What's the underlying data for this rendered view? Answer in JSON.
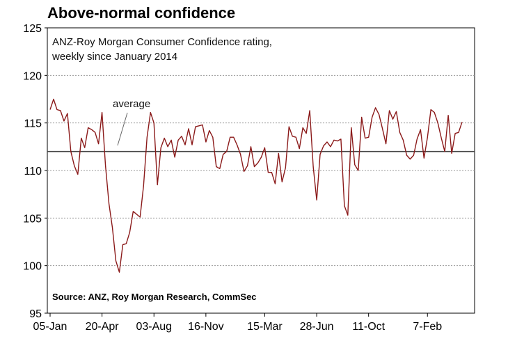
{
  "title": "Above-normal confidence",
  "chart_data": {
    "type": "line",
    "subtitle_line1": "ANZ-Roy Morgan Consumer Confidence rating,",
    "subtitle_line2": "weekly since January 2014",
    "source": "Source: ANZ, Roy Morgan Research, CommSec",
    "average_label": "average",
    "average_value": 112,
    "ylim": [
      95,
      125
    ],
    "yticks": [
      95,
      100,
      105,
      110,
      115,
      120,
      125
    ],
    "xticks": [
      "05-Jan",
      "20-Apr",
      "03-Aug",
      "16-Nov",
      "15-Mar",
      "28-Jun",
      "11-Oct",
      "7-Feb"
    ],
    "xtick_index": [
      0,
      15,
      30,
      45,
      62,
      77,
      92,
      109
    ],
    "grid": true,
    "series": [
      {
        "color": "#8b1a1a",
        "values": [
          116.4,
          117.5,
          116.4,
          116.3,
          115.2,
          116.0,
          112.0,
          110.5,
          109.6,
          113.4,
          112.4,
          114.5,
          114.3,
          114.0,
          112.8,
          116.1,
          110.5,
          106.5,
          104.0,
          100.5,
          99.3,
          102.2,
          102.3,
          103.5,
          105.7,
          105.4,
          105.1,
          108.4,
          113.5,
          116.1,
          115.0,
          108.5,
          112.4,
          113.4,
          112.5,
          113.2,
          111.4,
          113.2,
          113.6,
          112.7,
          114.4,
          112.7,
          114.6,
          114.7,
          114.8,
          113.0,
          114.2,
          113.5,
          110.4,
          110.2,
          111.7,
          112.0,
          113.5,
          113.5,
          112.7,
          111.7,
          109.9,
          110.5,
          112.5,
          110.4,
          110.8,
          111.4,
          112.4,
          109.8,
          109.8,
          108.6,
          111.8,
          108.8,
          110.3,
          114.6,
          113.6,
          113.5,
          112.3,
          114.5,
          113.9,
          116.3,
          110.4,
          106.9,
          111.7,
          112.6,
          113.0,
          112.5,
          113.2,
          113.1,
          113.3,
          106.3,
          105.3,
          114.5,
          110.6,
          110.0,
          115.6,
          113.4,
          113.5,
          115.6,
          116.6,
          115.9,
          114.4,
          112.8,
          116.3,
          115.4,
          116.2,
          114.0,
          113.2,
          111.6,
          111.2,
          111.6,
          113.3,
          114.3,
          111.3,
          113.5,
          116.4,
          116.1,
          115.0,
          113.4,
          112.0,
          115.8,
          111.8,
          113.9,
          114.0,
          115.1
        ]
      }
    ]
  }
}
